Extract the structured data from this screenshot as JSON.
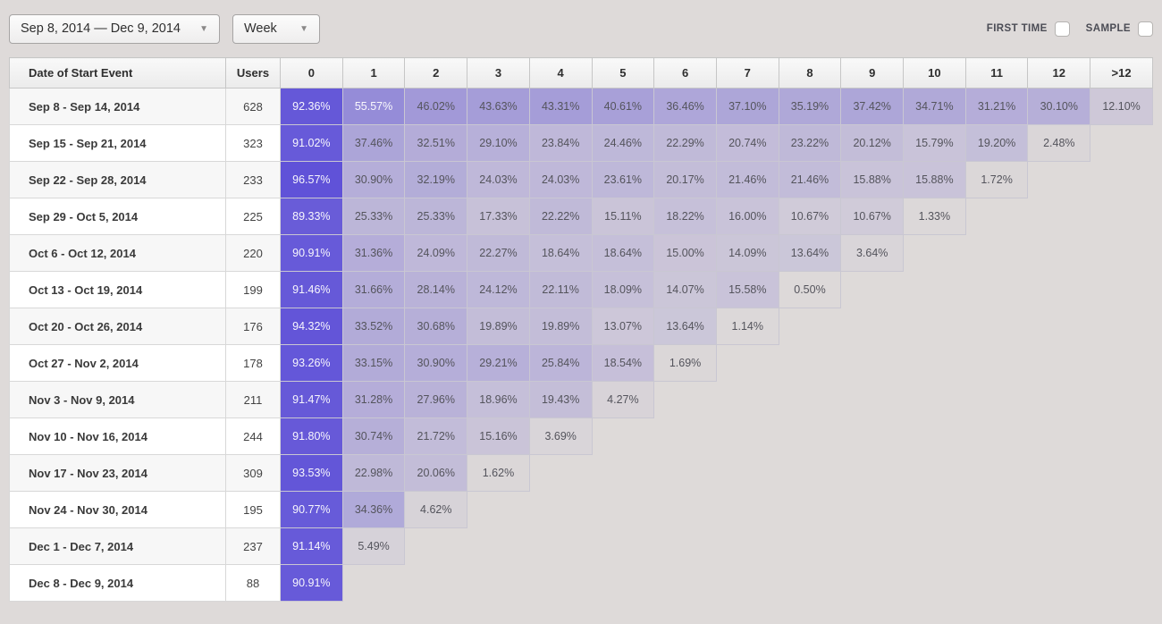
{
  "toolbar": {
    "date_range_label": "Sep 8, 2014 — Dec 9, 2014",
    "granularity_label": "Week",
    "caret_glyph": "▼",
    "first_time_label": "FIRST TIME",
    "sample_label": "SAMPLE",
    "first_time_checked": false,
    "sample_checked": false
  },
  "colors": {
    "page_bg": "#dedad9",
    "cell_base": "#5b4dd8",
    "cell_border": "#c9c7d2",
    "light_text": "#54545c",
    "dark_bg_text": "#ffffff"
  },
  "chart_data": {
    "type": "heatmap",
    "title": "Weekly retention cohorts",
    "row_header": "Date of Start Event",
    "users_header": "Users",
    "period_columns": [
      "0",
      "1",
      "2",
      "3",
      "4",
      "5",
      "6",
      "7",
      "8",
      "9",
      "10",
      "11",
      "12",
      ">12"
    ],
    "value_unit": "%",
    "white_text_threshold": 50,
    "cohorts": [
      {
        "label": "Sep 8 - Sep 14, 2014",
        "users": 628,
        "values": [
          92.36,
          55.57,
          46.02,
          43.63,
          43.31,
          40.61,
          36.46,
          37.1,
          35.19,
          37.42,
          34.71,
          31.21,
          30.1,
          12.1
        ]
      },
      {
        "label": "Sep 15 - Sep 21, 2014",
        "users": 323,
        "values": [
          91.02,
          37.46,
          32.51,
          29.1,
          23.84,
          24.46,
          22.29,
          20.74,
          23.22,
          20.12,
          15.79,
          19.2,
          2.48
        ]
      },
      {
        "label": "Sep 22 - Sep 28, 2014",
        "users": 233,
        "values": [
          96.57,
          30.9,
          32.19,
          24.03,
          24.03,
          23.61,
          20.17,
          21.46,
          21.46,
          15.88,
          15.88,
          1.72
        ]
      },
      {
        "label": "Sep 29 - Oct 5, 2014",
        "users": 225,
        "values": [
          89.33,
          25.33,
          25.33,
          17.33,
          22.22,
          15.11,
          18.22,
          16.0,
          10.67,
          10.67,
          1.33
        ]
      },
      {
        "label": "Oct 6 - Oct 12, 2014",
        "users": 220,
        "values": [
          90.91,
          31.36,
          24.09,
          22.27,
          18.64,
          18.64,
          15.0,
          14.09,
          13.64,
          3.64
        ]
      },
      {
        "label": "Oct 13 - Oct 19, 2014",
        "users": 199,
        "values": [
          91.46,
          31.66,
          28.14,
          24.12,
          22.11,
          18.09,
          14.07,
          15.58,
          0.5
        ]
      },
      {
        "label": "Oct 20 - Oct 26, 2014",
        "users": 176,
        "values": [
          94.32,
          33.52,
          30.68,
          19.89,
          19.89,
          13.07,
          13.64,
          1.14
        ]
      },
      {
        "label": "Oct 27 - Nov 2, 2014",
        "users": 178,
        "values": [
          93.26,
          33.15,
          30.9,
          29.21,
          25.84,
          18.54,
          1.69
        ]
      },
      {
        "label": "Nov 3 - Nov 9, 2014",
        "users": 211,
        "values": [
          91.47,
          31.28,
          27.96,
          18.96,
          19.43,
          4.27
        ]
      },
      {
        "label": "Nov 10 - Nov 16, 2014",
        "users": 244,
        "values": [
          91.8,
          30.74,
          21.72,
          15.16,
          3.69
        ]
      },
      {
        "label": "Nov 17 - Nov 23, 2014",
        "users": 309,
        "values": [
          93.53,
          22.98,
          20.06,
          1.62
        ]
      },
      {
        "label": "Nov 24 - Nov 30, 2014",
        "users": 195,
        "values": [
          90.77,
          34.36,
          4.62
        ]
      },
      {
        "label": "Dec 1 - Dec 7, 2014",
        "users": 237,
        "values": [
          91.14,
          5.49
        ]
      },
      {
        "label": "Dec 8 - Dec 9, 2014",
        "users": 88,
        "values": [
          90.91
        ]
      }
    ]
  }
}
